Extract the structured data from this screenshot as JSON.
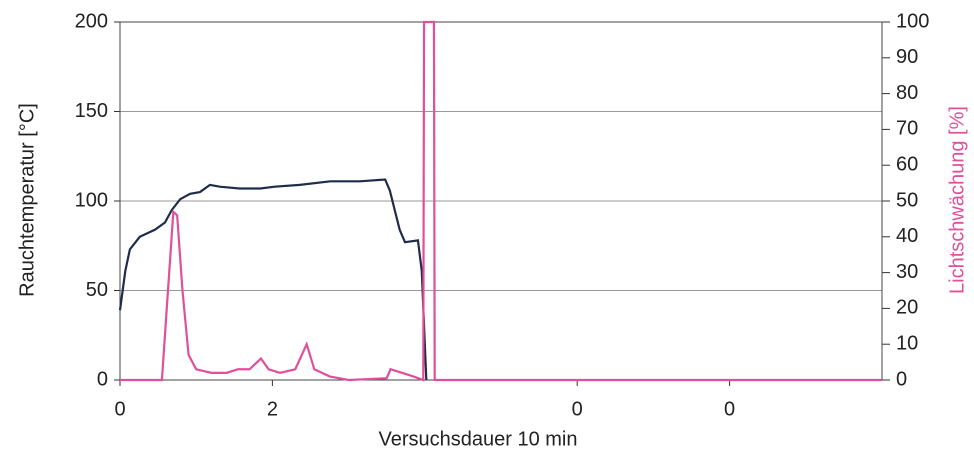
{
  "chart_data": {
    "type": "line",
    "xlabel": "Versuchsdauer 10 min",
    "ylabel": "Rauchtemperatur [°C]",
    "y2label": "Lichtschwächung [%]",
    "y2label_color": "#e0509a",
    "xlim": [
      0,
      10
    ],
    "xticks": [
      0,
      2,
      {
        "value": 6,
        "label": "0"
      },
      {
        "value": 8,
        "label": "0"
      }
    ],
    "ylim": [
      0,
      200
    ],
    "yticks": [
      0,
      50,
      100,
      150,
      200
    ],
    "y2lim": [
      0,
      100
    ],
    "y2ticks": [
      0,
      10,
      20,
      30,
      40,
      50,
      60,
      70,
      80,
      90,
      100
    ],
    "grid": true,
    "series": [
      {
        "color": "#1f2d4a",
        "axis": "y",
        "x": [
          0,
          0.07,
          0.13,
          0.26,
          0.46,
          0.59,
          0.68,
          0.79,
          0.92,
          1.05,
          1.18,
          1.31,
          1.57,
          1.84,
          2.03,
          2.36,
          2.76,
          3.15,
          3.48,
          3.54,
          3.67,
          3.74,
          3.91,
          3.96,
          4.02
        ],
        "values": [
          39,
          61,
          73,
          80,
          84,
          88,
          95,
          101,
          104,
          105,
          109,
          108,
          107,
          107,
          108,
          109,
          111,
          111,
          112,
          106,
          84,
          77,
          78,
          61,
          0
        ]
      },
      {
        "color": "#e0509a",
        "axis": "y2",
        "x": [
          0,
          0.55,
          0.62,
          0.7,
          0.75,
          0.82,
          0.9,
          1.0,
          1.2,
          1.4,
          1.55,
          1.7,
          1.85,
          1.95,
          2.1,
          2.3,
          2.45,
          2.55,
          2.75,
          3.0,
          3.5,
          3.55,
          3.7,
          3.85,
          3.98,
          3.99,
          4.12,
          4.13,
          10
        ],
        "values": [
          0,
          0,
          22,
          47,
          46,
          25,
          7,
          3,
          2,
          2,
          3,
          3,
          6,
          3,
          2,
          3,
          10,
          3,
          1,
          0,
          0.5,
          3,
          2,
          1,
          0,
          100,
          100,
          0,
          0
        ]
      }
    ]
  }
}
